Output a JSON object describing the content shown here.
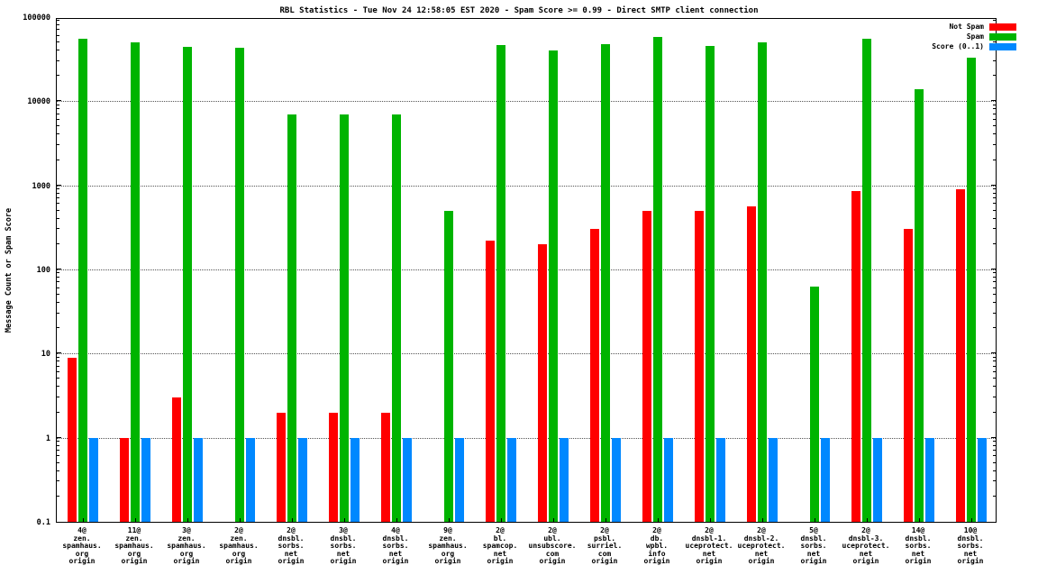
{
  "chart_data": {
    "type": "bar",
    "title": "RBL Statistics - Tue Nov 24 12:58:05 EST 2020 - Spam Score >= 0.99 - Direct SMTP client connection",
    "ylabel": "Message Count or Spam Score",
    "xlabel": "",
    "y_scale": "log",
    "ylim": [
      0.1,
      100000
    ],
    "yticks": [
      "100000",
      "10000",
      "1000",
      "100",
      "10",
      "1",
      "0.1"
    ],
    "grid": true,
    "legend_position": "top-right",
    "categories": [
      "4@\nzen.\nspamhaus.\norg\norigin",
      "11@\nzen.\nspamhaus.\norg\norigin",
      "3@\nzen.\nspamhaus.\norg\norigin",
      "2@\nzen.\nspamhaus.\norg\norigin",
      "2@\ndnsbl.\nsorbs.\nnet\norigin",
      "3@\ndnsbl.\nsorbs.\nnet\norigin",
      "4@\ndnsbl.\nsorbs.\nnet\norigin",
      "9@\nzen.\nspamhaus.\norg\norigin",
      "2@\nbl.\nspamcop.\nnet\norigin",
      "2@\nubl.\nunsubscore.\ncom\norigin",
      "2@\npsbl.\nsurriel.\ncom\norigin",
      "2@\ndb.\nwpbl.\ninfo\norigin",
      "2@\ndnsbl-1.\nuceprotect.\nnet\norigin",
      "2@\ndnsbl-2.\nuceprotect.\nnet\norigin",
      "5@\ndnsbl.\nsorbs.\nnet\norigin",
      "2@\ndnsbl-3.\nuceprotect.\nnet\norigin",
      "14@\ndnsbl.\nsorbs.\nnet\norigin",
      "10@\ndnsbl.\nsorbs.\nnet\norigin"
    ],
    "series": [
      {
        "name": "Not Spam",
        "color": "#ff0000",
        "values": [
          9,
          1,
          3,
          null,
          2,
          2,
          2,
          null,
          220,
          200,
          300,
          500,
          500,
          560,
          null,
          850,
          300,
          900
        ]
      },
      {
        "name": "Spam",
        "color": "#00b400",
        "values": [
          55000,
          50000,
          44000,
          43000,
          7000,
          7000,
          7000,
          500,
          46000,
          40000,
          48000,
          58000,
          45000,
          50000,
          62,
          55000,
          14000,
          33000
        ]
      },
      {
        "name": "Score (0..1)",
        "color": "#0088ff",
        "values": [
          1,
          1,
          1,
          1,
          1,
          1,
          1,
          1,
          1,
          1,
          1,
          1,
          1,
          1,
          1,
          1,
          1,
          1
        ]
      }
    ]
  }
}
